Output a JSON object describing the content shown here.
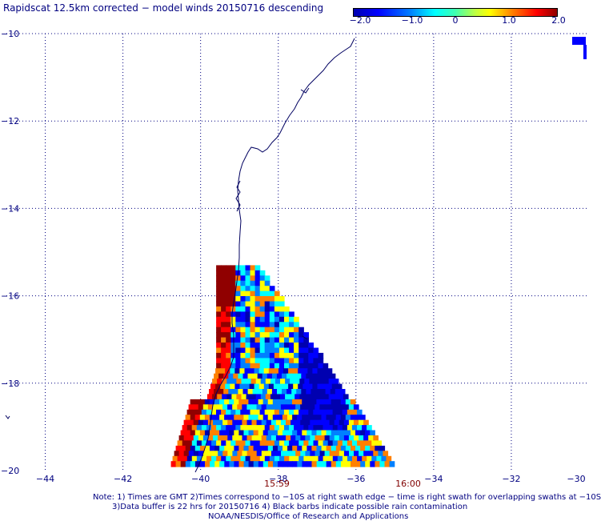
{
  "title": "Rapidscat 12.5km corrected − model winds 20150716 descending",
  "colorbar": {
    "tick_labels": [
      "−2.0",
      "−1.0",
      "0",
      "1.0",
      "2.0"
    ],
    "range": [
      -2.0,
      2.0
    ],
    "colors": [
      "#0000b0",
      "#0000ff",
      "#0080ff",
      "#00ffff",
      "#ffff00",
      "#ff8000",
      "#ff0000",
      "#900000"
    ]
  },
  "axes": {
    "lon_ticks": [
      "−44",
      "−42",
      "−40",
      "−38",
      "−36",
      "−34",
      "−32",
      "−30"
    ],
    "lat_ticks": [
      "−10",
      "−12",
      "−14",
      "−16",
      "−18",
      "−20"
    ],
    "lon_range": [
      -45,
      -30
    ],
    "lat_range": [
      -20,
      -10
    ],
    "grid": "dotted"
  },
  "swath_times": [
    "15:59",
    "16:00"
  ],
  "notes": [
    "Note: 1) Times are GMT 2)Times correspond to −10S at right swath edge − time is right swath for overlapping swaths at −10S",
    "3)Data buffer is 22 hrs for 20150716 4) Black barbs indicate possible rain contamination",
    "NOAA/NESDIS/Office of Research and Applications"
  ],
  "colors": {
    "label_text": "#000080",
    "time_text": "#800000",
    "coastline": "#000060"
  }
}
